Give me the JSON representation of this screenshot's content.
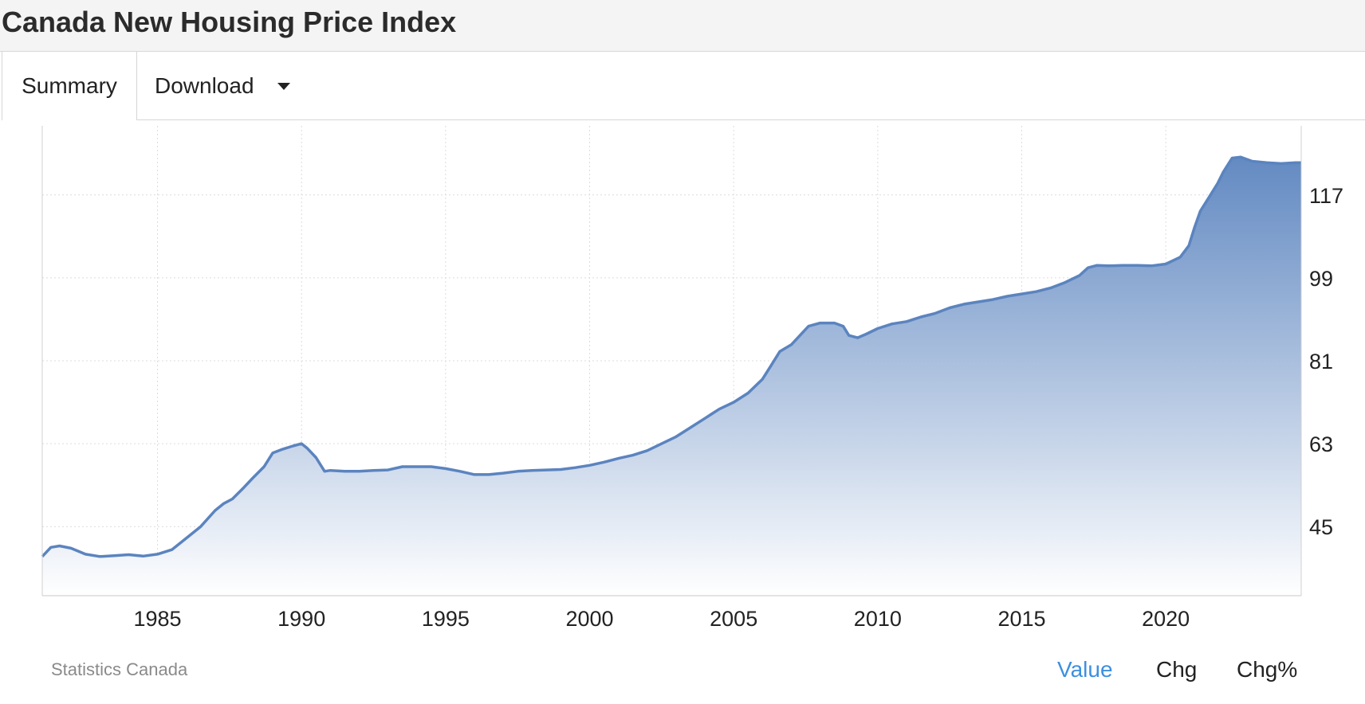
{
  "header": {
    "title": "Canada New Housing Price Index"
  },
  "tabs": {
    "summary_label": "Summary",
    "download_label": "Download"
  },
  "footer": {
    "source": "Statistics Canada",
    "modes": [
      "Value",
      "Chg",
      "Chg%"
    ],
    "active_mode": "Value"
  },
  "colors": {
    "line": "#5b84bf",
    "fill_top": "#5b84bf",
    "fill_bottom": "#ffffff",
    "active_mode": "#3d8fe0"
  },
  "chart_data": {
    "type": "area",
    "title": "",
    "xlabel": "",
    "ylabel": "",
    "x_ticks": [
      1985,
      1990,
      1995,
      2000,
      2005,
      2010,
      2015,
      2020
    ],
    "y_ticks": [
      45,
      63,
      81,
      99,
      117
    ],
    "xlim": [
      1981.0,
      2024.7
    ],
    "ylim": [
      30,
      132
    ],
    "grid": true,
    "y_axis_side": "right",
    "series": [
      {
        "x": [
          1981.0,
          1981.3,
          1981.6,
          1982.0,
          1982.5,
          1983.0,
          1983.5,
          1984.0,
          1984.5,
          1985.0,
          1985.5,
          1986.0,
          1986.5,
          1987.0,
          1987.3,
          1987.6,
          1988.0,
          1988.3,
          1988.7,
          1989.0,
          1989.3,
          1989.7,
          1990.0,
          1990.2,
          1990.5,
          1990.8,
          1991.0,
          1991.5,
          1992.0,
          1992.5,
          1993.0,
          1993.5,
          1994.0,
          1994.5,
          1995.0,
          1995.5,
          1996.0,
          1996.5,
          1997.0,
          1997.5,
          1998.0,
          1998.5,
          1999.0,
          1999.5,
          2000.0,
          2000.5,
          2001.0,
          2001.5,
          2002.0,
          2002.5,
          2003.0,
          2003.5,
          2004.0,
          2004.5,
          2005.0,
          2005.5,
          2006.0,
          2006.3,
          2006.6,
          2007.0,
          2007.3,
          2007.6,
          2008.0,
          2008.5,
          2008.8,
          2009.0,
          2009.3,
          2009.6,
          2010.0,
          2010.5,
          2011.0,
          2011.5,
          2012.0,
          2012.5,
          2013.0,
          2013.5,
          2014.0,
          2014.5,
          2015.0,
          2015.5,
          2016.0,
          2016.5,
          2017.0,
          2017.3,
          2017.6,
          2018.0,
          2018.5,
          2019.0,
          2019.5,
          2020.0,
          2020.5,
          2020.8,
          2021.0,
          2021.2,
          2021.5,
          2021.8,
          2022.0,
          2022.3,
          2022.6,
          2023.0,
          2023.5,
          2024.0,
          2024.5,
          2024.7
        ],
        "values": [
          38.5,
          40.5,
          40.8,
          40.3,
          39.0,
          38.5,
          38.7,
          38.9,
          38.6,
          39.0,
          40.0,
          42.5,
          45.0,
          48.5,
          50.0,
          51.0,
          53.5,
          55.5,
          58.0,
          61.0,
          61.7,
          62.5,
          63.0,
          62.0,
          60.0,
          57.0,
          57.2,
          57.0,
          57.0,
          57.2,
          57.3,
          58.0,
          58.0,
          58.0,
          57.6,
          57.0,
          56.3,
          56.3,
          56.6,
          57.0,
          57.2,
          57.3,
          57.4,
          57.8,
          58.3,
          59.0,
          59.8,
          60.5,
          61.5,
          63.0,
          64.5,
          66.5,
          68.5,
          70.5,
          72.0,
          74.0,
          77.0,
          80.0,
          83.0,
          84.5,
          86.5,
          88.5,
          89.2,
          89.2,
          88.5,
          86.5,
          86.0,
          86.8,
          88.0,
          89.0,
          89.5,
          90.5,
          91.3,
          92.5,
          93.3,
          93.8,
          94.3,
          95.0,
          95.5,
          96.0,
          96.8,
          98.0,
          99.5,
          101.2,
          101.7,
          101.6,
          101.7,
          101.7,
          101.6,
          102.0,
          103.5,
          106.0,
          110.0,
          113.5,
          116.5,
          119.5,
          122.0,
          125.0,
          125.2,
          124.3,
          124.0,
          123.8,
          124.0,
          124.0
        ]
      }
    ]
  }
}
